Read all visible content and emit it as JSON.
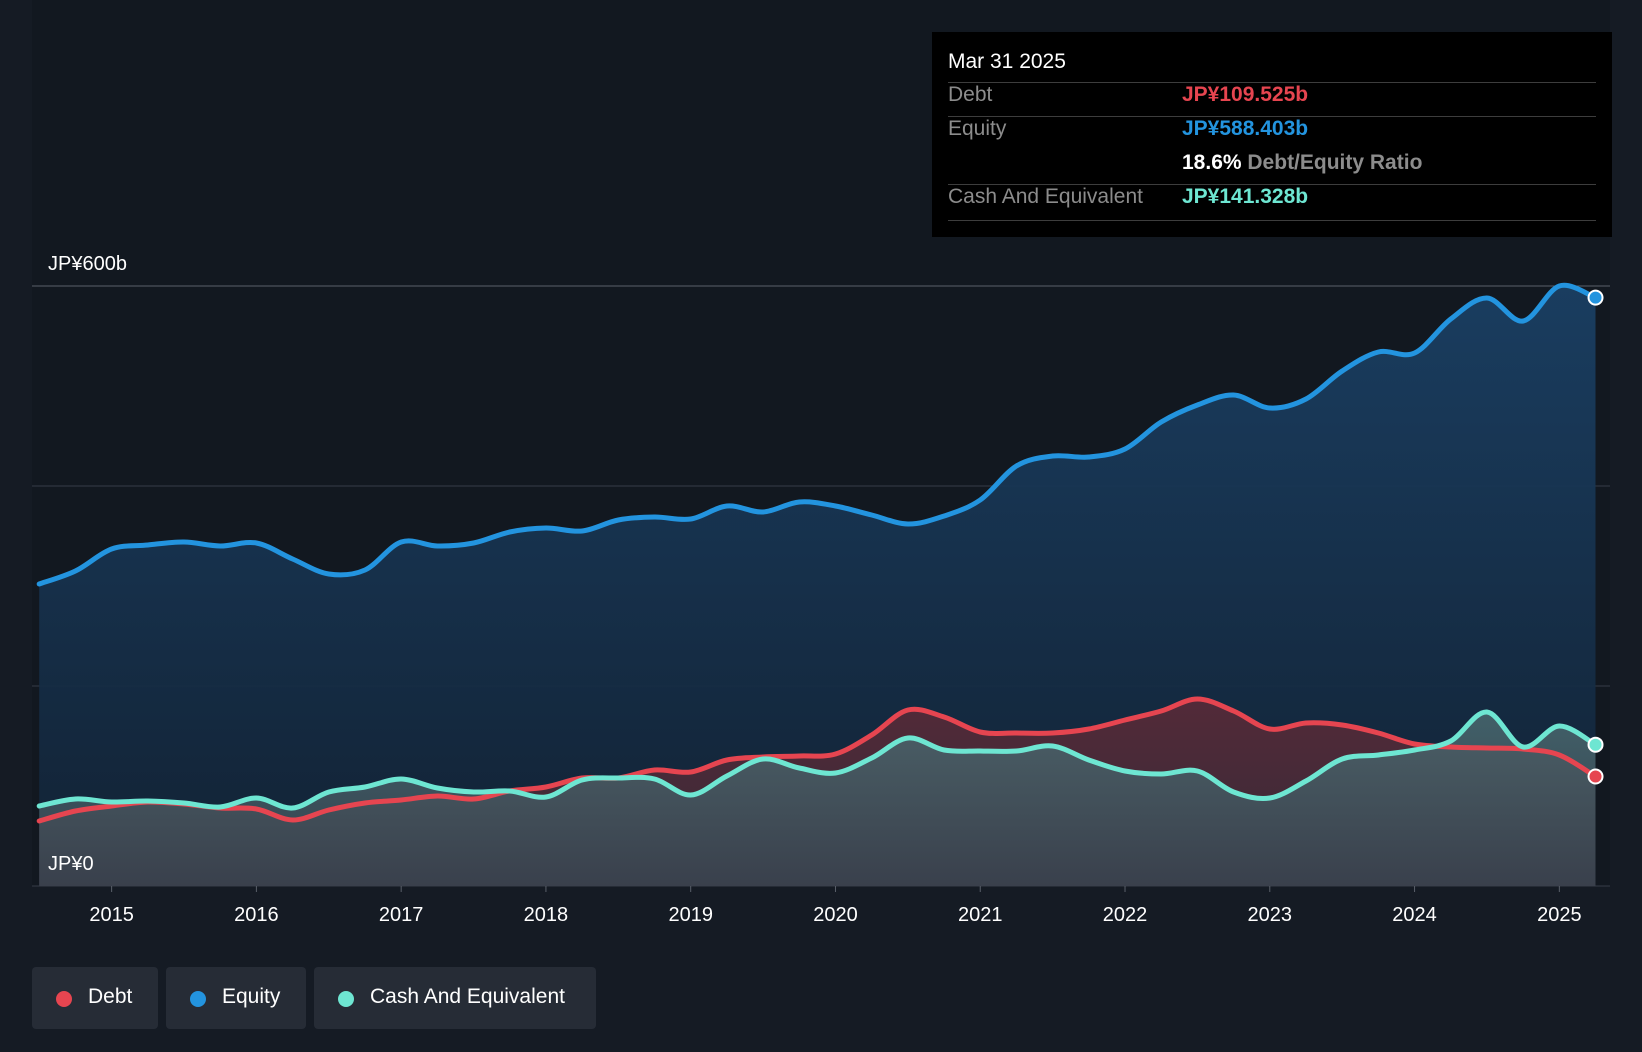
{
  "tooltip": {
    "date": "Mar 31 2025",
    "rows": [
      {
        "label": "Debt",
        "value": "JP¥109.525b"
      },
      {
        "label": "Equity",
        "value": "JP¥588.403b"
      },
      {
        "label": "",
        "ratio_value": "18.6%",
        "ratio_label": "Debt/Equity Ratio"
      },
      {
        "label": "Cash And Equivalent",
        "value": "JP¥141.328b"
      }
    ]
  },
  "legend": [
    {
      "label": "Debt"
    },
    {
      "label": "Equity"
    },
    {
      "label": "Cash And Equivalent"
    }
  ],
  "colors": {
    "debt": "#e64550",
    "equity": "#2394df",
    "cash": "#6ee6d2",
    "background": "#151b24",
    "grid": "#363c47"
  },
  "chart_data": {
    "type": "area",
    "title": "",
    "ylim": [
      0,
      600
    ],
    "y_tick_labels": [
      "JP¥600b",
      "JP¥0"
    ],
    "y_ticks": [
      600,
      0
    ],
    "x_tick_labels": [
      "2015",
      "2016",
      "2017",
      "2018",
      "2019",
      "2020",
      "2021",
      "2022",
      "2023",
      "2024",
      "2025"
    ],
    "x_ticks": [
      2015,
      2016,
      2017,
      2018,
      2019,
      2020,
      2021,
      2022,
      2023,
      2024,
      2025
    ],
    "xlim": [
      2014.45,
      2025.35
    ],
    "series": [
      {
        "name": "Equity",
        "color": "#2394df",
        "points": [
          [
            2014.5,
            302
          ],
          [
            2014.75,
            315
          ],
          [
            2015.0,
            337
          ],
          [
            2015.25,
            341
          ],
          [
            2015.5,
            344
          ],
          [
            2015.75,
            340
          ],
          [
            2016.0,
            343
          ],
          [
            2016.25,
            327
          ],
          [
            2016.5,
            312
          ],
          [
            2016.75,
            316
          ],
          [
            2017.0,
            344
          ],
          [
            2017.25,
            340
          ],
          [
            2017.5,
            343
          ],
          [
            2017.75,
            354
          ],
          [
            2018.0,
            358
          ],
          [
            2018.25,
            355
          ],
          [
            2018.5,
            366
          ],
          [
            2018.75,
            369
          ],
          [
            2019.0,
            367
          ],
          [
            2019.25,
            380
          ],
          [
            2019.5,
            374
          ],
          [
            2019.75,
            384
          ],
          [
            2020.0,
            380
          ],
          [
            2020.25,
            371
          ],
          [
            2020.5,
            362
          ],
          [
            2020.75,
            370
          ],
          [
            2021.0,
            386
          ],
          [
            2021.25,
            420
          ],
          [
            2021.5,
            430
          ],
          [
            2021.75,
            429
          ],
          [
            2022.0,
            437
          ],
          [
            2022.25,
            464
          ],
          [
            2022.5,
            481
          ],
          [
            2022.75,
            491
          ],
          [
            2023.0,
            478
          ],
          [
            2023.25,
            487
          ],
          [
            2023.5,
            515
          ],
          [
            2023.75,
            534
          ],
          [
            2024.0,
            533
          ],
          [
            2024.25,
            567
          ],
          [
            2024.5,
            588
          ],
          [
            2024.75,
            565
          ],
          [
            2025.0,
            600
          ],
          [
            2025.25,
            588.4
          ]
        ]
      },
      {
        "name": "Debt",
        "color": "#e64550",
        "points": [
          [
            2014.5,
            65
          ],
          [
            2014.75,
            75
          ],
          [
            2015.0,
            80
          ],
          [
            2015.25,
            84
          ],
          [
            2015.5,
            82
          ],
          [
            2015.75,
            78
          ],
          [
            2016.0,
            77
          ],
          [
            2016.25,
            66
          ],
          [
            2016.5,
            76
          ],
          [
            2016.75,
            83
          ],
          [
            2017.0,
            86
          ],
          [
            2017.25,
            90
          ],
          [
            2017.5,
            87
          ],
          [
            2017.75,
            95
          ],
          [
            2018.0,
            99
          ],
          [
            2018.25,
            108
          ],
          [
            2018.5,
            108
          ],
          [
            2018.75,
            116
          ],
          [
            2019.0,
            114
          ],
          [
            2019.25,
            126
          ],
          [
            2019.5,
            129
          ],
          [
            2019.75,
            130
          ],
          [
            2020.0,
            132
          ],
          [
            2020.25,
            151
          ],
          [
            2020.5,
            176
          ],
          [
            2020.75,
            169
          ],
          [
            2021.0,
            154
          ],
          [
            2021.25,
            153
          ],
          [
            2021.5,
            153
          ],
          [
            2021.75,
            157
          ],
          [
            2022.0,
            166
          ],
          [
            2022.25,
            175
          ],
          [
            2022.5,
            187
          ],
          [
            2022.75,
            175
          ],
          [
            2023.0,
            157
          ],
          [
            2023.25,
            163
          ],
          [
            2023.5,
            161
          ],
          [
            2023.75,
            153
          ],
          [
            2024.0,
            142
          ],
          [
            2024.25,
            139
          ],
          [
            2024.5,
            138
          ],
          [
            2024.75,
            137
          ],
          [
            2025.0,
            131
          ],
          [
            2025.25,
            109.5
          ]
        ]
      },
      {
        "name": "Cash And Equivalent",
        "color": "#6ee6d2",
        "points": [
          [
            2014.5,
            80
          ],
          [
            2014.75,
            87
          ],
          [
            2015.0,
            84
          ],
          [
            2015.25,
            85
          ],
          [
            2015.5,
            83
          ],
          [
            2015.75,
            79
          ],
          [
            2016.0,
            88
          ],
          [
            2016.25,
            78
          ],
          [
            2016.5,
            94
          ],
          [
            2016.75,
            99
          ],
          [
            2017.0,
            107
          ],
          [
            2017.25,
            98
          ],
          [
            2017.5,
            94
          ],
          [
            2017.75,
            95
          ],
          [
            2018.0,
            89
          ],
          [
            2018.25,
            106
          ],
          [
            2018.5,
            108
          ],
          [
            2018.75,
            107
          ],
          [
            2019.0,
            91
          ],
          [
            2019.25,
            110
          ],
          [
            2019.5,
            127
          ],
          [
            2019.75,
            118
          ],
          [
            2020.0,
            113
          ],
          [
            2020.25,
            128
          ],
          [
            2020.5,
            148
          ],
          [
            2020.75,
            136
          ],
          [
            2021.0,
            135
          ],
          [
            2021.25,
            135
          ],
          [
            2021.5,
            140
          ],
          [
            2021.75,
            126
          ],
          [
            2022.0,
            115
          ],
          [
            2022.25,
            112
          ],
          [
            2022.5,
            115
          ],
          [
            2022.75,
            94
          ],
          [
            2023.0,
            88
          ],
          [
            2023.25,
            105
          ],
          [
            2023.5,
            127
          ],
          [
            2023.75,
            131
          ],
          [
            2024.0,
            136
          ],
          [
            2024.25,
            145
          ],
          [
            2024.5,
            174
          ],
          [
            2024.75,
            139
          ],
          [
            2025.0,
            160
          ],
          [
            2025.25,
            141.3
          ]
        ]
      }
    ]
  }
}
